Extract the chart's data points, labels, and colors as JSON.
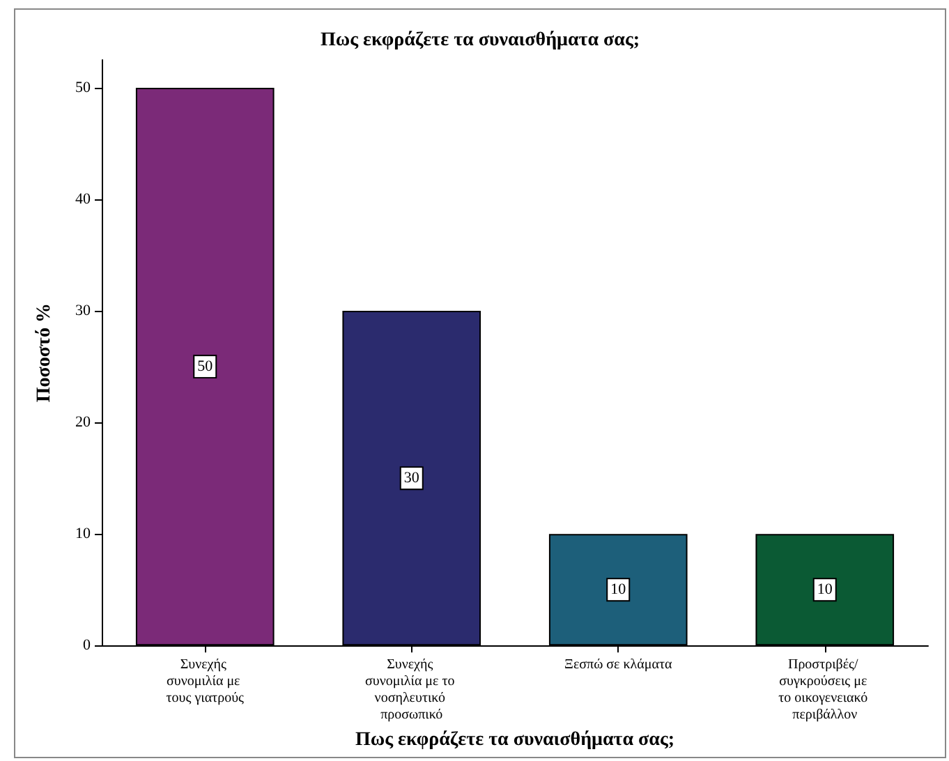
{
  "chart_data": {
    "type": "bar",
    "title": "Πως εκφράζετε τα συναισθήματα σας;",
    "xlabel": "Πως εκφράζετε τα συναισθήματα σας;",
    "ylabel": "Ποσοστό %",
    "categories": [
      "Συνεχής συνομιλία με τους γιατρούς",
      "Συνεχής συνομιλία με το νοσηλευτικό προσωπικό",
      "Ξεσπώ σε κλάματα",
      "Προστριβές/ συγκρούσεις με το οικογενειακό περιβάλλον"
    ],
    "values": [
      50,
      30,
      10,
      10
    ],
    "colors": [
      "#7b2a78",
      "#2b2b6e",
      "#1d5f7a",
      "#0b5a34"
    ],
    "ylim": [
      0,
      52.5
    ],
    "yticks": [
      0,
      10,
      20,
      30,
      40,
      50
    ],
    "data_labels": true
  }
}
